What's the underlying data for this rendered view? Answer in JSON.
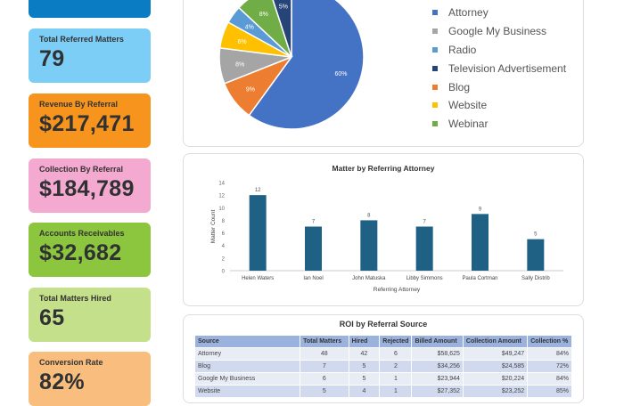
{
  "cards": [
    {
      "label": "",
      "value": "",
      "color": "#0a7cc4"
    },
    {
      "label": "Total Referred Matters",
      "value": "79",
      "color": "#7dcef7"
    },
    {
      "label": "Revenue By Referral",
      "value": "$217,471",
      "color": "#f7941d"
    },
    {
      "label": "Collection By Referral",
      "value": "$184,789",
      "color": "#f4a9d0"
    },
    {
      "label": "Accounts Receivables",
      "value": "$32,682",
      "color": "#8cc63f"
    },
    {
      "label": "Total Matters Hired",
      "value": "65",
      "color": "#c5e08a"
    },
    {
      "label": "Conversion Rate",
      "value": "82%",
      "color": "#f9bd7e"
    }
  ],
  "chart_data": [
    {
      "type": "pie",
      "legend_position": "right",
      "slices": [
        {
          "name": "Attorney",
          "value": 60,
          "label": "60%",
          "color": "#4472c4"
        },
        {
          "name": "Blog",
          "value": 9,
          "label": "9%",
          "color": "#ed7d31"
        },
        {
          "name": "Google My Business",
          "value": 8,
          "label": "8%",
          "color": "#a5a5a5"
        },
        {
          "name": "Website",
          "value": 6,
          "label": "6%",
          "color": "#ffc000"
        },
        {
          "name": "Radio",
          "value": 4,
          "label": "4%",
          "color": "#5b9bd5"
        },
        {
          "name": "Webinar",
          "value": 8,
          "label": "8%",
          "color": "#70ad47"
        },
        {
          "name": "Television Advertisement",
          "value": 5,
          "label": "5%",
          "color": "#264478"
        }
      ],
      "legend": [
        "Attorney",
        "Google My Business",
        "Radio",
        "Television Advertisement",
        "Blog",
        "Website",
        "Webinar"
      ]
    },
    {
      "type": "bar",
      "title": "Matter by Referring Attorney",
      "xlabel": "Referring Attorney",
      "ylabel": "Matter Count",
      "categories": [
        "Helen Waters",
        "Ian Noel",
        "John Matuska",
        "Libby Simmons",
        "Paula Cortman",
        "Sally Distrib"
      ],
      "values": [
        12,
        7,
        8,
        7,
        9,
        5
      ],
      "ylim": [
        0,
        14
      ],
      "yticks": [
        0,
        2,
        4,
        6,
        8,
        10,
        12,
        14
      ],
      "color": "#1f6184",
      "grid": false
    }
  ],
  "table": {
    "title": "ROI by Referral Source",
    "headers": [
      "Source",
      "Total Matters",
      "Hired",
      "Rejected",
      "Billed Amount",
      "Collection Amount",
      "Collection %"
    ],
    "rows": [
      [
        "Attorney",
        "48",
        "42",
        "6",
        "$58,625",
        "$49,247",
        "84%"
      ],
      [
        "Blog",
        "7",
        "5",
        "2",
        "$34,256",
        "$24,585",
        "72%"
      ],
      [
        "Google My Business",
        "6",
        "5",
        "1",
        "$23,944",
        "$20,224",
        "84%"
      ],
      [
        "Website",
        "5",
        "4",
        "1",
        "$27,352",
        "$23,252",
        "85%"
      ]
    ]
  }
}
